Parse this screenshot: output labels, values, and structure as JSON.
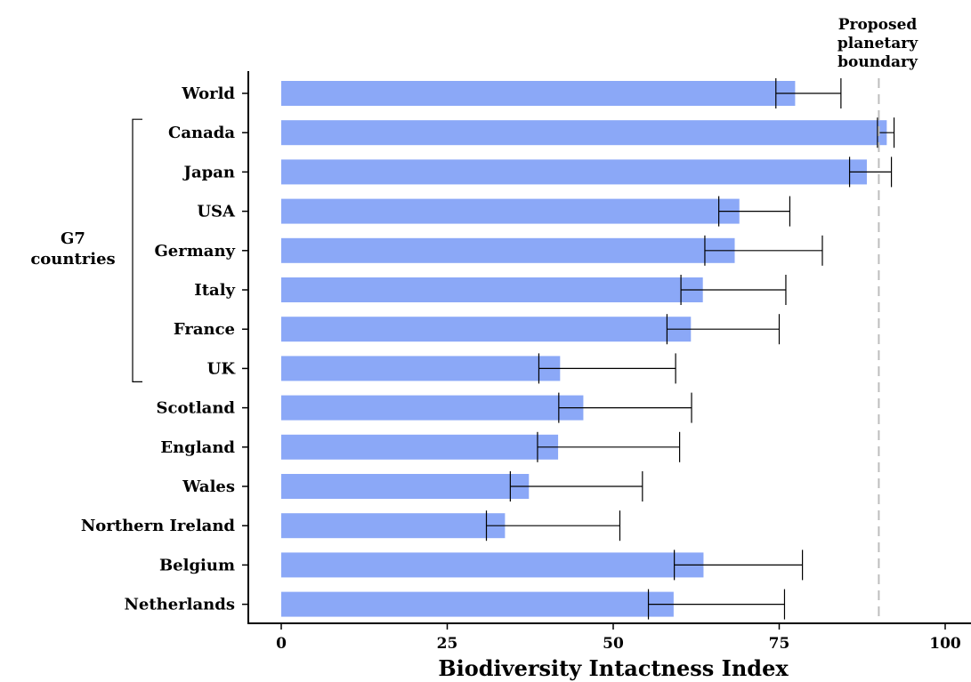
{
  "chart_data": {
    "type": "bar",
    "orientation": "horizontal",
    "categories": [
      "World",
      "Canada",
      "Japan",
      "USA",
      "Germany",
      "Italy",
      "France",
      "UK",
      "Scotland",
      "England",
      "Wales",
      "Northern Ireland",
      "Belgium",
      "Netherlands"
    ],
    "values": [
      77.4,
      91.2,
      88.2,
      69.0,
      68.3,
      63.5,
      61.7,
      42.0,
      45.5,
      41.7,
      37.3,
      33.7,
      63.6,
      59.1
    ],
    "error_low": [
      74.5,
      89.8,
      85.6,
      65.9,
      63.8,
      60.2,
      58.1,
      38.8,
      41.8,
      38.6,
      34.5,
      30.9,
      59.2,
      55.3
    ],
    "error_high": [
      84.3,
      92.3,
      91.9,
      76.6,
      81.5,
      76.0,
      75.0,
      59.4,
      61.8,
      60.0,
      54.4,
      51.0,
      78.5,
      75.8
    ],
    "xlabel": "Biodiversity Intactness Index",
    "xlim": [
      -5,
      100
    ],
    "xticks": [
      0,
      25,
      50,
      75,
      100
    ],
    "xtick_labels": [
      "0",
      "25",
      "50",
      "75",
      "100"
    ],
    "reference_line": {
      "value": 90,
      "label_lines": [
        "Proposed",
        "planetary",
        "boundary"
      ]
    },
    "group_bracket": {
      "label_lines": [
        "G7",
        "countries"
      ],
      "from": "Canada",
      "to": "UK"
    },
    "colors": {
      "bar": "#8ba8f7",
      "error_bar": "#000000",
      "reference_line": "#bdbdbd"
    },
    "grid": false
  }
}
